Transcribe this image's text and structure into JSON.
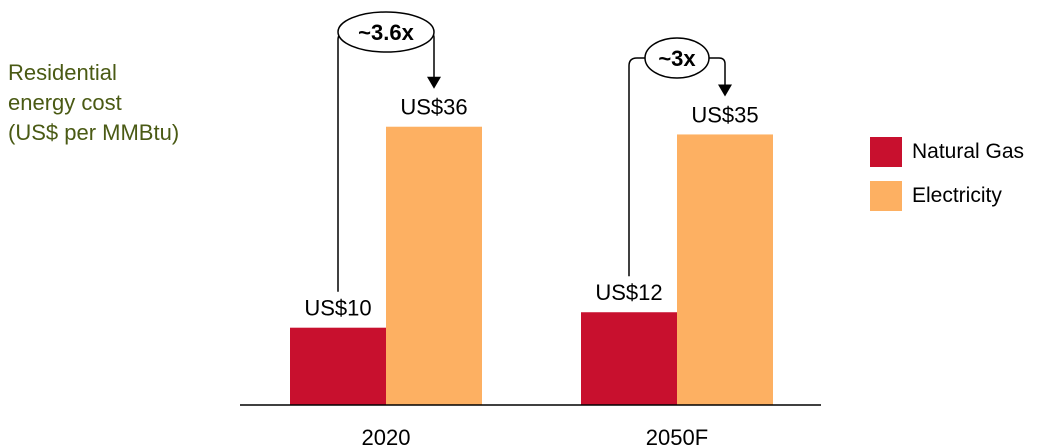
{
  "chart_data": {
    "type": "bar",
    "ylabel": [
      "Residential",
      "energy cost",
      "(US$ per MMBtu)"
    ],
    "categories": [
      "2020",
      "2050F"
    ],
    "series": [
      {
        "name": "Natural Gas",
        "color": "#c8102e",
        "values": [
          10,
          12
        ],
        "labels": [
          "US$10",
          "US$12"
        ]
      },
      {
        "name": "Electricity",
        "color": "#fdb062",
        "values": [
          36,
          35
        ],
        "labels": [
          "US$36",
          "US$35"
        ]
      }
    ],
    "annotations": [
      {
        "category": "2020",
        "text": "~3.6x"
      },
      {
        "category": "2050F",
        "text": "~3x"
      }
    ],
    "ylabel_color": "#4a5a14",
    "legend": "right",
    "grid": false
  }
}
